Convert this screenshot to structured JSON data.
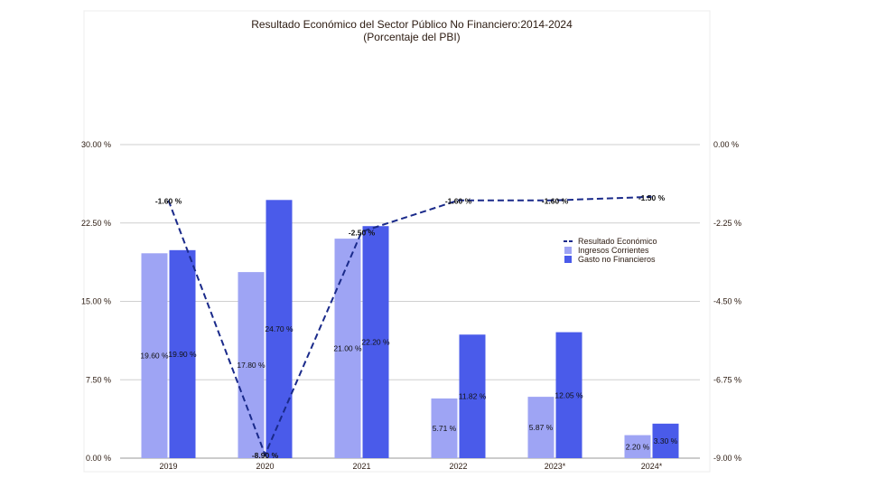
{
  "chart_data": {
    "type": "bar",
    "title": "Resultado Económico del Sector Público No Financiero:2014-2024",
    "subtitle": "(Porcentaje del PBI)",
    "categories": [
      "2019",
      "2020",
      "2021",
      "2022",
      "2023*",
      "2024*"
    ],
    "series": [
      {
        "name": "Ingresos Corrientes",
        "type": "bar",
        "axis": "left",
        "values": [
          19.6,
          17.8,
          21.0,
          5.71,
          5.87,
          2.2
        ],
        "labels": [
          "19.60 %",
          "17.80 %",
          "21.00 %",
          "5.71 %",
          "5.87 %",
          "2.20 %"
        ],
        "color": "#9ea4f4"
      },
      {
        "name": "Gasto no Financieros",
        "type": "bar",
        "axis": "left",
        "values": [
          19.9,
          24.7,
          22.2,
          11.82,
          12.05,
          3.3
        ],
        "labels": [
          "19.90 %",
          "24.70 %",
          "22.20 %",
          "11.82 %",
          "12.05 %",
          "3.30 %"
        ],
        "color": "#4a5bea"
      },
      {
        "name": "Resultado Económico",
        "type": "line",
        "axis": "right",
        "values": [
          -1.6,
          -8.9,
          -2.5,
          -1.6,
          -1.6,
          -1.5
        ],
        "labels": [
          "-1.60 %",
          "-8.90 %",
          "-2.50 %",
          "-1.60 %",
          "-1.60 %",
          "-1.50 %"
        ],
        "color": "#1a2a8a"
      }
    ],
    "left_axis": {
      "ylim": [
        0,
        30
      ],
      "ticks": [
        "0.00 %",
        "7.50 %",
        "15.00 %",
        "22.50 %",
        "30.00 %"
      ],
      "tick_values": [
        0,
        7.5,
        15,
        22.5,
        30
      ]
    },
    "right_axis": {
      "ylim": [
        -9,
        0
      ],
      "ticks": [
        "-9.00 %",
        "-6.75 %",
        "-4.50 %",
        "-2.25 %",
        "0.00 %"
      ],
      "tick_values": [
        -9,
        -6.75,
        -4.5,
        -2.25,
        0
      ]
    },
    "grid": true,
    "legend_position": "right"
  }
}
